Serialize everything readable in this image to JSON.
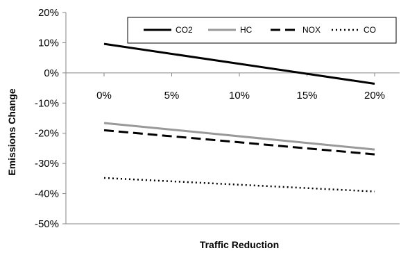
{
  "chart_data": {
    "type": "line",
    "title": "",
    "xlabel": "Traffic Reduction",
    "ylabel": "Emissions Change",
    "x": [
      0,
      20
    ],
    "x_tick_labels": [
      "0%",
      "5%",
      "10%",
      "15%",
      "20%"
    ],
    "x_ticks": [
      0,
      5,
      10,
      15,
      20
    ],
    "y_tick_labels": [
      "20%",
      "10%",
      "0%",
      "-10%",
      "-20%",
      "-30%",
      "-40%",
      "-50%"
    ],
    "y_ticks": [
      20,
      10,
      0,
      -10,
      -20,
      -30,
      -40,
      -50
    ],
    "xlim": [
      0,
      20
    ],
    "ylim": [
      -50,
      20
    ],
    "grid": false,
    "legend_position": "top",
    "series": [
      {
        "name": "CO2",
        "values": [
          9.6,
          -3.6
        ],
        "color": "#000000",
        "dash": "solid"
      },
      {
        "name": "HC",
        "values": [
          -16.6,
          -25.4
        ],
        "color": "#999999",
        "dash": "solid"
      },
      {
        "name": "NOX",
        "values": [
          -19.0,
          -27.0
        ],
        "color": "#000000",
        "dash": "dashed"
      },
      {
        "name": "CO",
        "values": [
          -34.8,
          -39.3
        ],
        "color": "#000000",
        "dash": "dotted"
      }
    ]
  }
}
